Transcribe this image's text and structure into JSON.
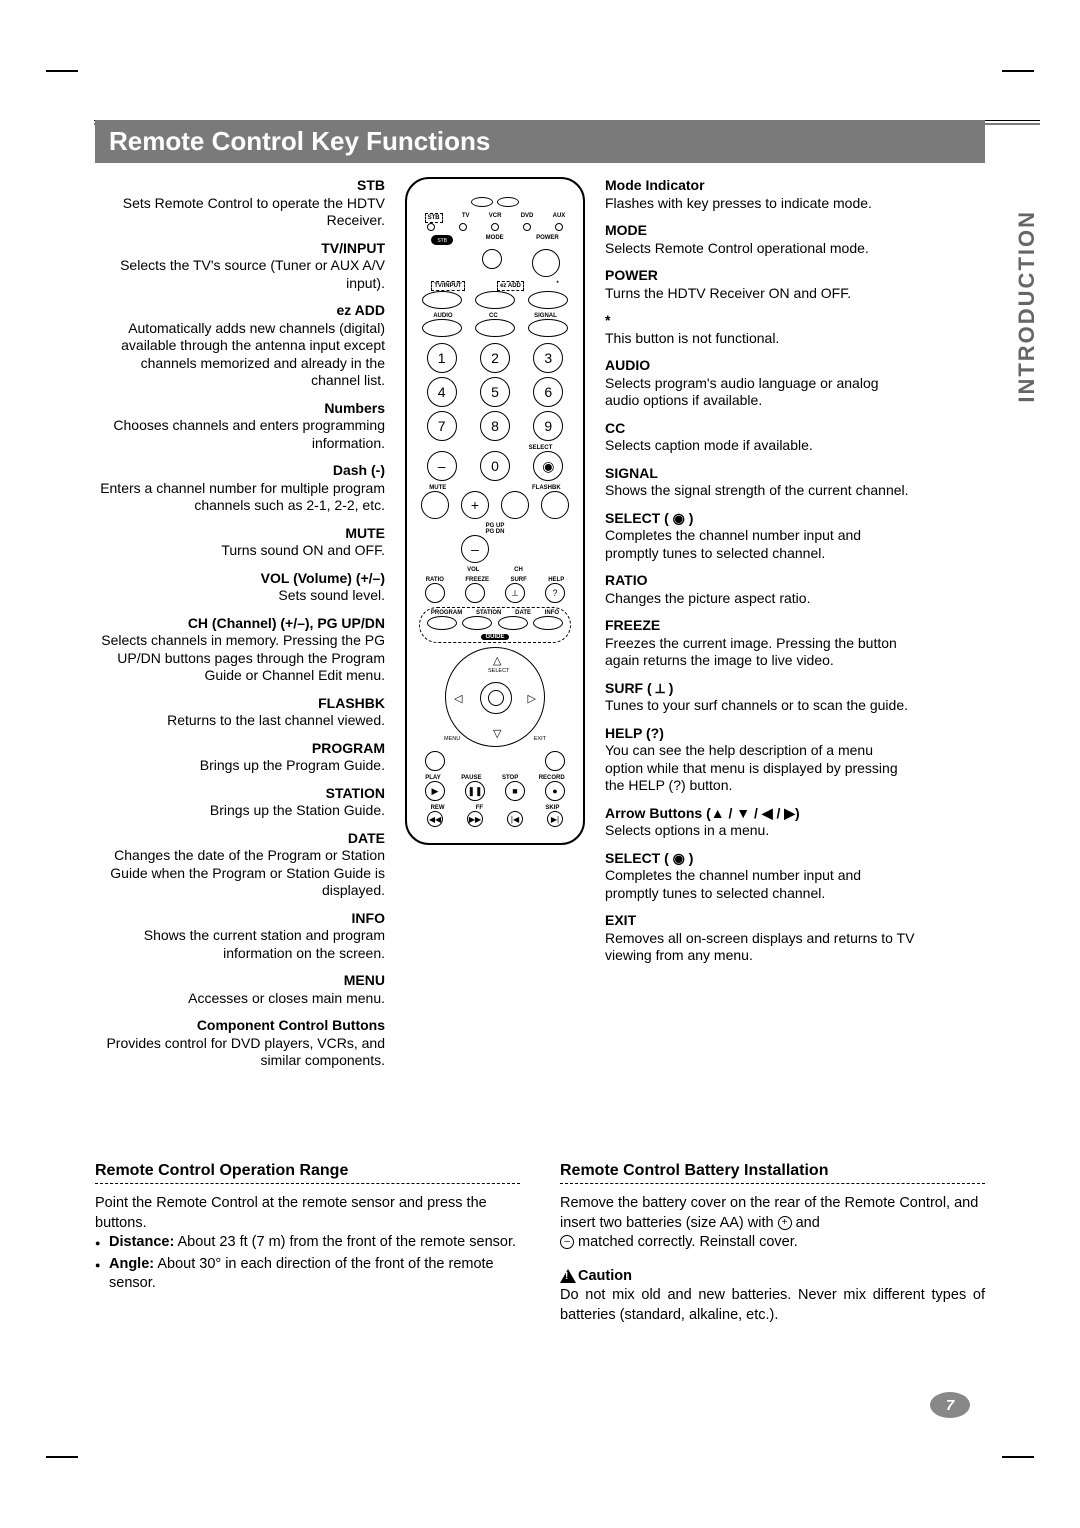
{
  "page": {
    "title": "Remote Control Key Functions",
    "side_tab": "INTRODUCTION",
    "page_number": "7"
  },
  "left": [
    {
      "label": "STB",
      "desc": "Sets Remote Control to operate the HDTV Receiver."
    },
    {
      "label": "TV/INPUT",
      "desc": "Selects the TV's source (Tuner or AUX A/V input)."
    },
    {
      "label": "ez ADD",
      "desc": "Automatically adds new channels (digital) available through the antenna input except channels memorized and already in the channel list."
    },
    {
      "label": "Numbers",
      "desc": "Chooses channels and enters programming information."
    },
    {
      "label": "Dash (-)",
      "desc": "Enters a channel number for multiple program channels such as 2-1, 2-2, etc."
    },
    {
      "label": "MUTE",
      "desc": "Turns sound ON and OFF."
    },
    {
      "label": "VOL (Volume) (+/–)",
      "desc": "Sets sound level."
    },
    {
      "label": "CH (Channel) (+/–), PG UP/DN",
      "desc": "Selects channels in memory. Pressing the PG UP/DN buttons pages through the Program Guide or Channel Edit menu."
    },
    {
      "label": "FLASHBK",
      "desc": "Returns to the last channel viewed."
    },
    {
      "label": "PROGRAM",
      "desc": "Brings up the Program Guide."
    },
    {
      "label": "STATION",
      "desc": "Brings up the Station Guide."
    },
    {
      "label": "DATE",
      "desc": "Changes the date of the Program or Station Guide when the Program or Station Guide is displayed."
    },
    {
      "label": "INFO",
      "desc": "Shows the current station and program information on the screen."
    },
    {
      "label": "MENU",
      "desc": "Accesses or closes main menu."
    },
    {
      "label": "Component Control Buttons",
      "desc": "Provides control for DVD players, VCRs, and similar components."
    }
  ],
  "right": [
    {
      "label": "Mode Indicator",
      "desc": "Flashes with key presses to indicate mode."
    },
    {
      "label": "MODE",
      "desc": "Selects Remote Control operational mode."
    },
    {
      "label": "POWER",
      "desc": "Turns the HDTV Receiver ON and OFF."
    },
    {
      "label": "*",
      "desc": "This button is not functional."
    },
    {
      "label": "AUDIO",
      "desc": "Selects program's audio language or analog audio options if available."
    },
    {
      "label": "CC",
      "desc": "Selects caption mode if available."
    },
    {
      "label": "SIGNAL",
      "desc": "Shows the signal strength of the current channel."
    },
    {
      "label": "SELECT ( ◉ )",
      "desc": "Completes the channel number input and promptly tunes to selected channel."
    },
    {
      "label": "RATIO",
      "desc": "Changes the picture aspect ratio."
    },
    {
      "label": "FREEZE",
      "desc": "Freezes the current image. Pressing the button again returns the image to live video."
    },
    {
      "label": "SURF ( ⟂ )",
      "desc": "Tunes to your surf channels or to scan the guide."
    },
    {
      "label": "HELP (?)",
      "desc": "You can see the help description of a menu option while that menu is displayed by pressing the HELP (?) button."
    },
    {
      "label": "Arrow Buttons (▲ / ▼ / ◀ / ▶)",
      "desc": "Selects options in a menu."
    },
    {
      "label": "SELECT ( ◉ )",
      "desc": "Completes the channel number input and promptly tunes to selected channel."
    },
    {
      "label": "EXIT",
      "desc": "Removes all on-screen displays and returns to TV viewing from any menu."
    }
  ],
  "remote": {
    "top_labels": [
      "STB",
      "TV",
      "VCR",
      "DVD",
      "AUX"
    ],
    "row2_labels": [
      "STB",
      "MODE",
      "POWER"
    ],
    "row3_labels": [
      "TV/INPUT",
      "ez ADD",
      "*"
    ],
    "row4_labels": [
      "AUDIO",
      "CC",
      "SIGNAL"
    ],
    "numbers": [
      "1",
      "2",
      "3",
      "4",
      "5",
      "6",
      "7",
      "8",
      "9",
      "–",
      "0",
      "◉"
    ],
    "select_label": "SELECT",
    "mute_flash": [
      "MUTE",
      "FLASHBK"
    ],
    "pg": [
      "PG UP",
      "PG DN"
    ],
    "volch": [
      "VOL",
      "CH"
    ],
    "ratio_row": [
      "RATIO",
      "FREEZE",
      "SURF",
      "HELP"
    ],
    "guide_row": [
      "PROGRAM",
      "STATION",
      "DATE",
      "INFO"
    ],
    "guide_label": "GUIDE",
    "dpad": {
      "select": "SELECT",
      "menu": "MENU",
      "exit": "EXIT"
    },
    "transport_row": [
      "PLAY",
      "PAUSE",
      "STOP",
      "RECORD"
    ],
    "transport2": [
      "REW",
      "FF",
      "SKIP"
    ]
  },
  "bottom_left": {
    "title": "Remote Control Operation Range",
    "intro": "Point the Remote Control at the remote sensor and press the buttons.",
    "items": [
      {
        "b": "Distance:",
        "t": " About 23 ft (7 m) from the front of the remote sensor."
      },
      {
        "b": "Angle:",
        "t": " About 30° in each direction of the front of the remote sensor."
      }
    ]
  },
  "bottom_right": {
    "title": "Remote Control Battery Installation",
    "text_a": "Remove the battery cover on the rear of the Remote Control, and insert two batteries (size AA) with ",
    "text_b": " and ",
    "text_c": " matched correctly. Reinstall cover.",
    "caution_label": "Caution",
    "caution_text": "Do not mix old and new batteries. Never mix different types of batteries (standard, alkaline, etc.)."
  }
}
